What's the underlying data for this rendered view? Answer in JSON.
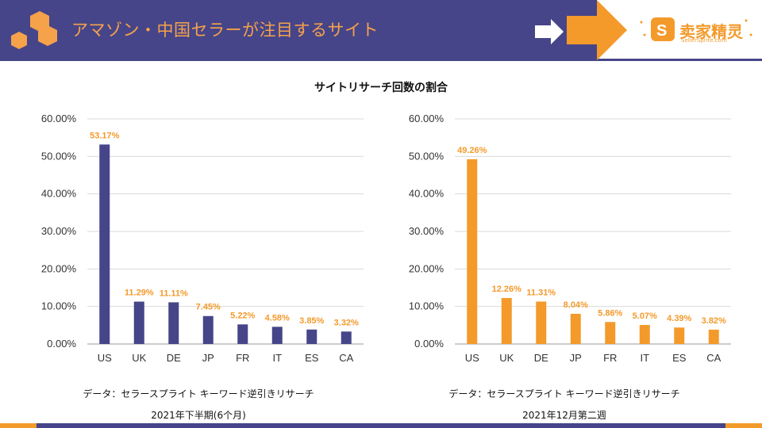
{
  "header": {
    "title": "アマゾン・中国セラーが注目するサイト",
    "brand_name": "卖家精灵",
    "brand_url": "SellerSprite.com",
    "band_color": "#464589",
    "accent_color": "#f39a2b"
  },
  "main": {
    "chart_title": "サイトリサーチ回数の割合"
  },
  "chart_data": [
    {
      "type": "bar",
      "title": "サイトリサーチ回数の割合",
      "categories": [
        "US",
        "UK",
        "DE",
        "JP",
        "FR",
        "IT",
        "ES",
        "CA"
      ],
      "values": [
        53.17,
        11.29,
        11.11,
        7.45,
        5.22,
        4.58,
        3.85,
        3.32
      ],
      "value_labels": [
        "53.17%",
        "11.29%",
        "11.11%",
        "7.45%",
        "5.22%",
        "4.58%",
        "3.85%",
        "3.32%"
      ],
      "ylim": [
        0,
        60
      ],
      "yticks": [
        "0.00%",
        "10.00%",
        "20.00%",
        "30.00%",
        "40.00%",
        "50.00%",
        "60.00%"
      ],
      "grid": true,
      "bar_color": "#464589",
      "label_color": "#f39a2b",
      "source": "データ：セラースプライト キーワード逆引きリサーチ",
      "period": "2021年下半期(6个月)"
    },
    {
      "type": "bar",
      "title": "サイトリサーチ回数の割合",
      "categories": [
        "US",
        "UK",
        "DE",
        "JP",
        "FR",
        "IT",
        "ES",
        "CA"
      ],
      "values": [
        49.26,
        12.26,
        11.31,
        8.04,
        5.86,
        5.07,
        4.39,
        3.82
      ],
      "value_labels": [
        "49.26%",
        "12.26%",
        "11.31%",
        "8.04%",
        "5.86%",
        "5.07%",
        "4.39%",
        "3.82%"
      ],
      "ylim": [
        0,
        60
      ],
      "yticks": [
        "0.00%",
        "10.00%",
        "20.00%",
        "30.00%",
        "40.00%",
        "50.00%",
        "60.00%"
      ],
      "grid": true,
      "bar_color": "#f39a2b",
      "label_color": "#f39a2b",
      "source": "データ：セラースプライト キーワード逆引きリサーチ",
      "period": "2021年12月第二週"
    }
  ]
}
